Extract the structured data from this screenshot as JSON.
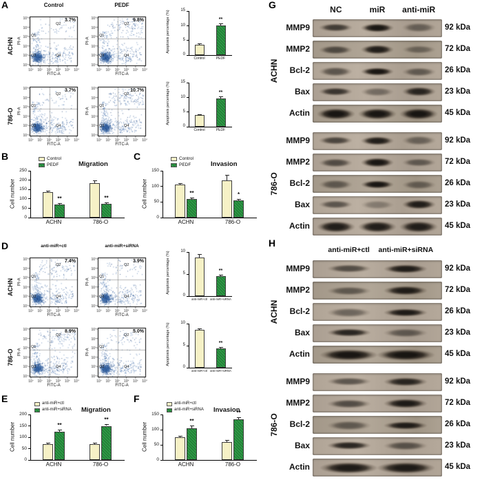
{
  "panel_letters": {
    "A": "A",
    "B": "B",
    "C": "C",
    "D": "D",
    "E": "E",
    "F": "F",
    "G": "G",
    "H": "H"
  },
  "colors": {
    "control_fill": "#f6f1c6",
    "treated_fill": "#2d9a45",
    "scatter_dot": "#3a69a5",
    "band_dark": "#17120e",
    "blot_bg": "#ab9f92"
  },
  "flow_ticks": [
    "10⁰",
    "10¹",
    "10²",
    "10³",
    "10⁴",
    "10⁵"
  ],
  "flow_panels": [
    {
      "panel": "A",
      "col_headers": [
        "Control",
        "PEDF"
      ],
      "xlabel": "FITC-A",
      "ylabel": "PI-A",
      "quadrant_labels": [
        "Q1",
        "Q2",
        "Q3",
        "Q4"
      ],
      "rows": [
        {
          "cell_line": "ACHN",
          "plots": [
            {
              "pct": "3.7%"
            },
            {
              "pct": "9.8%"
            }
          ]
        },
        {
          "cell_line": "786-O",
          "plots": [
            {
              "pct": "3.7%"
            },
            {
              "pct": "10.7%"
            }
          ]
        }
      ]
    },
    {
      "panel": "D",
      "col_headers": [
        "anti-miR+ctl",
        "anti-miR+siRNA"
      ],
      "xlabel": "FITC-A",
      "ylabel": "PI-A",
      "quadrant_labels": [
        "Q1",
        "Q2",
        "Q3",
        "Q4"
      ],
      "rows": [
        {
          "cell_line": "ACHN",
          "plots": [
            {
              "pct": "7.4%"
            },
            {
              "pct": "3.9%"
            }
          ]
        },
        {
          "cell_line": "786-O",
          "plots": [
            {
              "pct": "8.9%"
            },
            {
              "pct": "5.0%"
            }
          ]
        }
      ]
    }
  ],
  "chart_data": [
    {
      "id": "apoptosis-ACHN-PEDF",
      "type": "bar",
      "title": "",
      "ylabel": "Apoptosis percentage (%)",
      "ylim": [
        0,
        15
      ],
      "yticks": [
        0,
        5,
        10,
        15
      ],
      "categories": [
        "Control",
        "PEDF"
      ],
      "series": [
        {
          "name": "",
          "colors": [
            "control",
            "treated"
          ],
          "values": [
            3.5,
            10
          ],
          "errors": [
            0.4,
            0.7
          ],
          "sig": [
            null,
            "**"
          ]
        }
      ]
    },
    {
      "id": "apoptosis-786O-PEDF",
      "type": "bar",
      "title": "",
      "ylabel": "Apoptosis percentage (%)",
      "ylim": [
        0,
        15
      ],
      "yticks": [
        0,
        5,
        10,
        15
      ],
      "categories": [
        "Control",
        "PEDF"
      ],
      "series": [
        {
          "name": "",
          "colors": [
            "control",
            "treated"
          ],
          "values": [
            4,
            9.5
          ],
          "errors": [
            0.3,
            0.8
          ],
          "sig": [
            null,
            "**"
          ]
        }
      ]
    },
    {
      "id": "migration-PEDF",
      "type": "bar",
      "title": "Migration",
      "ylabel": "Cell number",
      "ylim": [
        0,
        250
      ],
      "yticks": [
        0,
        50,
        100,
        150,
        200,
        250
      ],
      "categories": [
        "ACHN",
        "786-O"
      ],
      "series": [
        {
          "name": "Control",
          "color": "control",
          "values": [
            135,
            185
          ],
          "errors": [
            10,
            12
          ]
        },
        {
          "name": "PEDF",
          "color": "treated",
          "values": [
            70,
            75
          ],
          "errors": [
            7,
            6
          ],
          "sig": [
            "**",
            "**"
          ]
        }
      ]
    },
    {
      "id": "invasion-PEDF",
      "type": "bar",
      "title": "Invasion",
      "ylabel": "Cell number",
      "ylim": [
        0,
        150
      ],
      "yticks": [
        0,
        50,
        100,
        150
      ],
      "categories": [
        "ACHN",
        "786-O"
      ],
      "series": [
        {
          "name": "Control",
          "color": "control",
          "values": [
            105,
            120
          ],
          "errors": [
            5,
            16
          ]
        },
        {
          "name": "PEDF",
          "color": "treated",
          "values": [
            60,
            55
          ],
          "errors": [
            5,
            5
          ],
          "sig": [
            "**",
            "*"
          ]
        }
      ]
    },
    {
      "id": "apoptosis-ACHN-siRNA",
      "type": "bar",
      "title": "",
      "ylabel": "Apoptosis percentage (%)",
      "ylim": [
        0,
        10
      ],
      "yticks": [
        0,
        5,
        10
      ],
      "categories": [
        "anti-miR+ctl",
        "anti-miR+siRNA"
      ],
      "series": [
        {
          "name": "",
          "colors": [
            "control",
            "treated"
          ],
          "values": [
            8.8,
            4.5
          ],
          "errors": [
            0.8,
            0.3
          ],
          "sig": [
            null,
            "**"
          ]
        }
      ]
    },
    {
      "id": "apoptosis-786O-siRNA",
      "type": "bar",
      "title": "",
      "ylabel": "Apoptosis percentage (%)",
      "ylim": [
        0,
        10
      ],
      "yticks": [
        0,
        5,
        10
      ],
      "categories": [
        "anti-miR+ctl",
        "anti-miR+siRNA"
      ],
      "series": [
        {
          "name": "",
          "colors": [
            "control",
            "treated"
          ],
          "values": [
            8.6,
            4.4
          ],
          "errors": [
            0.3,
            0.3
          ],
          "sig": [
            null,
            "**"
          ]
        }
      ]
    },
    {
      "id": "migration-siRNA",
      "type": "bar",
      "title": "Migration",
      "ylabel": "Cell number",
      "ylim": [
        0,
        200
      ],
      "yticks": [
        0,
        50,
        100,
        150,
        200
      ],
      "categories": [
        "ACHN",
        "786-O"
      ],
      "series": [
        {
          "name": "anti-miR+ctl",
          "color": "control",
          "values": [
            70,
            70
          ],
          "errors": [
            5,
            5
          ]
        },
        {
          "name": "anti-miR+siRNA",
          "color": "treated",
          "values": [
            125,
            150
          ],
          "errors": [
            8,
            8
          ],
          "sig": [
            "**",
            "**"
          ]
        }
      ]
    },
    {
      "id": "invasion-siRNA",
      "type": "bar",
      "title": "Invasion",
      "ylabel": "Cell number",
      "ylim": [
        0,
        150
      ],
      "yticks": [
        0,
        50,
        100,
        150
      ],
      "categories": [
        "ACHN",
        "786-O"
      ],
      "series": [
        {
          "name": "anti-miR+ctl",
          "color": "control",
          "values": [
            75,
            60
          ],
          "errors": [
            5,
            5
          ]
        },
        {
          "name": "anti-miR+siRNA",
          "color": "treated",
          "values": [
            105,
            135
          ],
          "errors": [
            8,
            6
          ],
          "sig": [
            "**",
            "**"
          ]
        }
      ]
    }
  ],
  "blot_panels": [
    {
      "panel": "G",
      "lane_headers": [
        "NC",
        "miR",
        "anti-miR"
      ],
      "lane_fracs": [
        0.18,
        0.5,
        0.82
      ],
      "groups": [
        {
          "cell_line": "ACHN",
          "rows": [
            {
              "protein": "MMP9",
              "kda": "92 kDa",
              "bands": [
                0.7,
                0.95,
                0.45
              ]
            },
            {
              "protein": "MMP2",
              "kda": "72 kDa",
              "bands": [
                0.6,
                0.9,
                0.4
              ]
            },
            {
              "protein": "Bcl-2",
              "kda": "26 kDa",
              "bands": [
                0.55,
                0.95,
                0.5
              ]
            },
            {
              "protein": "Bax",
              "kda": "23 kDa",
              "bands": [
                0.75,
                0.4,
                0.85
              ]
            },
            {
              "protein": "Actin",
              "kda": "45 kDa",
              "bands": [
                0.95,
                0.95,
                0.95
              ]
            }
          ]
        },
        {
          "cell_line": "786-O",
          "rows": [
            {
              "protein": "MMP9",
              "kda": "92 kDa",
              "bands": [
                0.65,
                0.9,
                0.45
              ]
            },
            {
              "protein": "MMP2",
              "kda": "72 kDa",
              "bands": [
                0.6,
                0.95,
                0.5
              ]
            },
            {
              "protein": "Bcl-2",
              "kda": "26 kDa",
              "bands": [
                0.5,
                0.95,
                0.45
              ]
            },
            {
              "protein": "Bax",
              "kda": "23 kDa",
              "bands": [
                0.55,
                0.3,
                0.9
              ]
            },
            {
              "protein": "Actin",
              "kda": "45 kDa",
              "bands": [
                0.9,
                0.9,
                0.9
              ]
            }
          ]
        }
      ]
    },
    {
      "panel": "H",
      "lane_headers": [
        "anti-miR+ctl",
        "anti-miR+siRNA"
      ],
      "lane_fracs": [
        0.28,
        0.72
      ],
      "groups": [
        {
          "cell_line": "ACHN",
          "rows": [
            {
              "protein": "MMP9",
              "kda": "92 kDa",
              "bands": [
                0.6,
                0.9
              ]
            },
            {
              "protein": "MMP2",
              "kda": "72 kDa",
              "bands": [
                0.5,
                0.9
              ]
            },
            {
              "protein": "Bcl-2",
              "kda": "26 kDa",
              "bands": [
                0.45,
                0.92
              ]
            },
            {
              "protein": "Bax",
              "kda": "23 kDa",
              "bands": [
                0.85,
                0.5
              ]
            },
            {
              "protein": "Actin",
              "kda": "45 kDa",
              "bands": [
                0.95,
                0.95
              ]
            }
          ]
        },
        {
          "cell_line": "786-O",
          "rows": [
            {
              "protein": "MMP9",
              "kda": "92 kDa",
              "bands": [
                0.55,
                0.85
              ]
            },
            {
              "protein": "MMP2",
              "kda": "72 kDa",
              "bands": [
                0.6,
                0.92
              ]
            },
            {
              "protein": "Bcl-2",
              "kda": "26 kDa",
              "bands": [
                0.5,
                0.9
              ]
            },
            {
              "protein": "Bax",
              "kda": "23 kDa",
              "bands": [
                0.85,
                0.55
              ]
            },
            {
              "protein": "Actin",
              "kda": "45 kDa",
              "bands": [
                0.92,
                0.92
              ]
            }
          ]
        }
      ]
    }
  ]
}
